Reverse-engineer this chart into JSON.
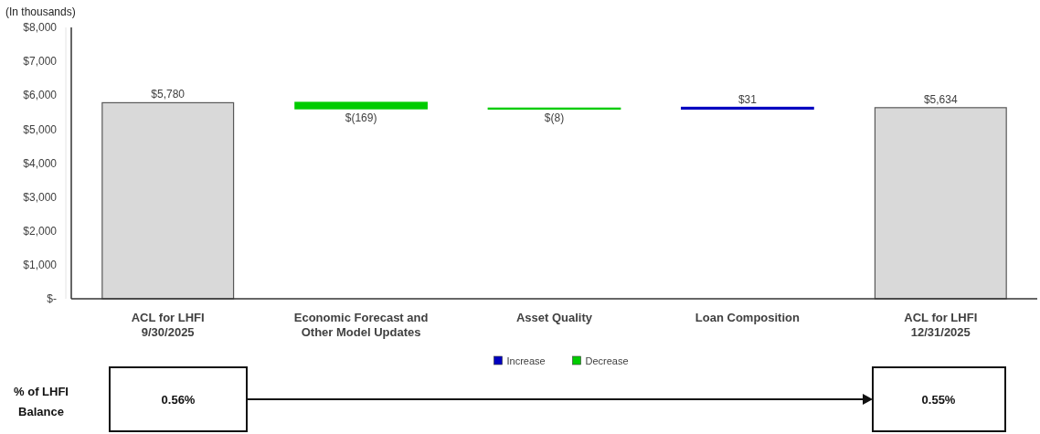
{
  "chart_data": {
    "type": "bar",
    "ylabel": "(In thousands)",
    "categories": [
      "ACL  for LHFI\n9/30/2025",
      "Economic Forecast and\nOther Model Updates",
      "Asset Quality",
      "Loan Composition",
      "ACL  for LHFI\n12/31/2025"
    ],
    "series": [
      {
        "color": "#d9d9d9",
        "base": [
          0,
          null,
          null,
          null,
          0
        ],
        "values": [
          5780,
          null,
          null,
          null,
          5634
        ],
        "value_labels": [
          "$5,780",
          null,
          null,
          null,
          "$5,634"
        ]
      },
      {
        "name": "Increase",
        "color": "#0000c0",
        "base": [
          null,
          null,
          null,
          5603,
          null
        ],
        "values": [
          null,
          null,
          null,
          31,
          null
        ],
        "value_labels": [
          null,
          null,
          null,
          "$31",
          null
        ]
      },
      {
        "name": "Decrease",
        "color": "#00cc00",
        "base": [
          null,
          5780,
          5611,
          null,
          null
        ],
        "values": [
          null,
          -169,
          -8,
          null,
          null
        ],
        "value_labels": [
          null,
          "$(169)",
          "$(8)",
          null,
          null
        ]
      }
    ],
    "ylim": [
      0,
      8000
    ],
    "yticks": [
      {
        "value": 0,
        "label": "$-"
      },
      {
        "value": 1000,
        "label": "$1,000"
      },
      {
        "value": 2000,
        "label": "$2,000"
      },
      {
        "value": 3000,
        "label": "$3,000"
      },
      {
        "value": 4000,
        "label": "$4,000"
      },
      {
        "value": 5000,
        "label": "$5,000"
      },
      {
        "value": 6000,
        "label": "$6,000"
      },
      {
        "value": 7000,
        "label": "$7,000"
      },
      {
        "value": 8000,
        "label": "$8,000"
      }
    ],
    "grid": false,
    "legend": "bottom",
    "annotations": [
      "% of LHFI\nBalance",
      "0.56%",
      "0.55%"
    ]
  }
}
